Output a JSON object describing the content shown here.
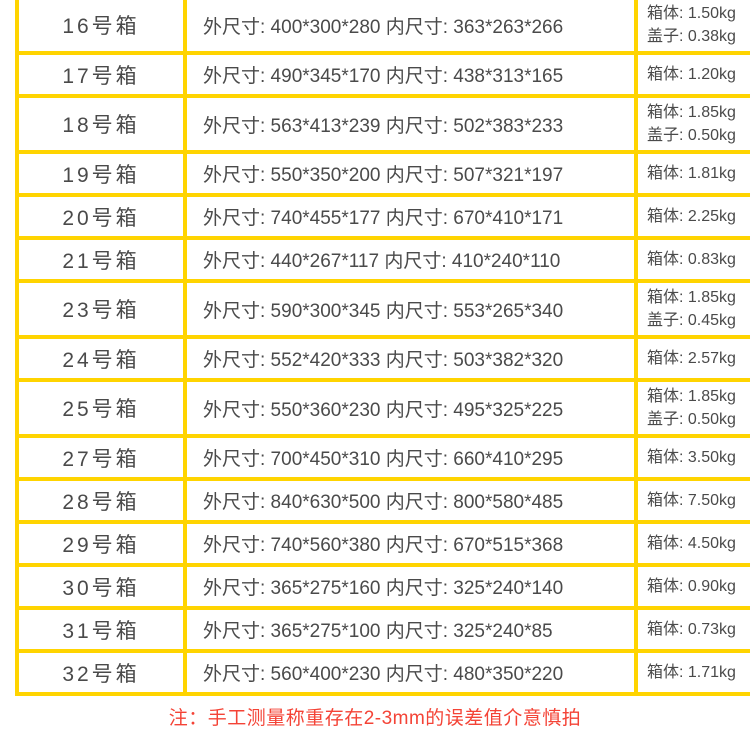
{
  "colors": {
    "table_border": "#ffd400",
    "cell_text": "#4a4a4a",
    "note_text": "#f44336"
  },
  "table": {
    "rows": [
      {
        "box": "16号箱",
        "dimensions": "外尺寸: 400*300*280 内尺寸: 363*263*266",
        "weights": [
          "箱体: 1.50kg",
          "盖子: 0.38kg"
        ]
      },
      {
        "box": "17号箱",
        "dimensions": "外尺寸: 490*345*170 内尺寸: 438*313*165",
        "weights": [
          "箱体: 1.20kg"
        ]
      },
      {
        "box": "18号箱",
        "dimensions": "外尺寸: 563*413*239 内尺寸: 502*383*233",
        "weights": [
          "箱体: 1.85kg",
          "盖子: 0.50kg"
        ]
      },
      {
        "box": "19号箱",
        "dimensions": "外尺寸: 550*350*200 内尺寸: 507*321*197",
        "weights": [
          "箱体: 1.81kg"
        ]
      },
      {
        "box": "20号箱",
        "dimensions": "外尺寸: 740*455*177 内尺寸: 670*410*171",
        "weights": [
          "箱体: 2.25kg"
        ]
      },
      {
        "box": "21号箱",
        "dimensions": "外尺寸: 440*267*117 内尺寸: 410*240*110",
        "weights": [
          "箱体: 0.83kg"
        ]
      },
      {
        "box": "23号箱",
        "dimensions": "外尺寸: 590*300*345 内尺寸: 553*265*340",
        "weights": [
          "箱体: 1.85kg",
          "盖子: 0.45kg"
        ]
      },
      {
        "box": "24号箱",
        "dimensions": "外尺寸: 552*420*333 内尺寸: 503*382*320",
        "weights": [
          "箱体: 2.57kg"
        ]
      },
      {
        "box": "25号箱",
        "dimensions": "外尺寸: 550*360*230 内尺寸: 495*325*225",
        "weights": [
          "箱体: 1.85kg",
          "盖子: 0.50kg"
        ]
      },
      {
        "box": "27号箱",
        "dimensions": "外尺寸: 700*450*310 内尺寸: 660*410*295",
        "weights": [
          "箱体: 3.50kg"
        ]
      },
      {
        "box": "28号箱",
        "dimensions": "外尺寸: 840*630*500 内尺寸: 800*580*485",
        "weights": [
          "箱体: 7.50kg"
        ]
      },
      {
        "box": "29号箱",
        "dimensions": "外尺寸: 740*560*380 内尺寸: 670*515*368",
        "weights": [
          "箱体: 4.50kg"
        ]
      },
      {
        "box": "30号箱",
        "dimensions": "外尺寸: 365*275*160 内尺寸: 325*240*140",
        "weights": [
          "箱体: 0.90kg"
        ]
      },
      {
        "box": "31号箱",
        "dimensions": "外尺寸: 365*275*100 内尺寸: 325*240*85",
        "weights": [
          "箱体: 0.73kg"
        ]
      },
      {
        "box": "32号箱",
        "dimensions": "外尺寸: 560*400*230 内尺寸: 480*350*220",
        "weights": [
          "箱体: 1.71kg"
        ]
      }
    ]
  },
  "footer": {
    "note": "注：手工测量称重存在2-3mm的误差值介意慎拍"
  }
}
